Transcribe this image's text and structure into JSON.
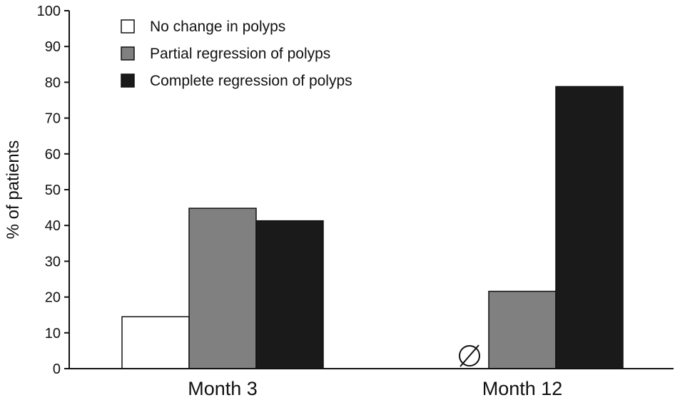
{
  "chart_data": {
    "type": "bar",
    "title": "",
    "xlabel": "",
    "ylabel": "% of patients",
    "ylim": [
      0,
      100
    ],
    "yticks": [
      0,
      10,
      20,
      30,
      40,
      50,
      60,
      70,
      80,
      90,
      100
    ],
    "categories": [
      "Month 3",
      "Month 12"
    ],
    "series": [
      {
        "name": "No change in polyps",
        "values": [
          14.5,
          0
        ],
        "color": "#ffffff"
      },
      {
        "name": "Partial regression of polyps",
        "values": [
          44.8,
          21.6
        ],
        "color": "#808080"
      },
      {
        "name": "Complete regression of polyps",
        "values": [
          41.3,
          78.8
        ],
        "color": "#1a1a1a"
      }
    ],
    "zero_marker": {
      "symbol": "∅",
      "category": "Month 12",
      "series": "No change in polyps"
    },
    "legend": "top-left",
    "grid": false
  }
}
